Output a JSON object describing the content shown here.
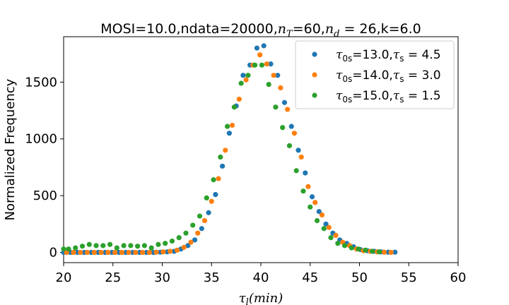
{
  "chart_data": {
    "type": "scatter",
    "title": {
      "prefix": "MOSI=10.0,ndata=20000,",
      "nT_sym": "n",
      "nT_sub": "T",
      "nT_val": "=60,",
      "nd_sym": "n",
      "nd_sub": "d",
      "nd_val": " = 26,k=6.0"
    },
    "xlabel": {
      "sym": "τ",
      "sub": "l",
      "rest": "(min)"
    },
    "ylabel": "Normalized Frequency",
    "xlim": [
      20,
      60
    ],
    "ylim": [
      -90,
      1900
    ],
    "xticks": [
      20,
      25,
      30,
      35,
      40,
      45,
      50,
      55,
      60
    ],
    "yticks": [
      0,
      500,
      1000,
      1500
    ],
    "grid": false,
    "legend_position": "top-right",
    "series": [
      {
        "name": "τ0s=13.0,τs = 4.5",
        "legend": {
          "a_sym": "τ",
          "a_sub": "0s",
          "a_val": "=13.0,",
          "b_sym": "τ",
          "b_sub": "s",
          "b_val": " = 4.5"
        },
        "color": "#1f77b4",
        "x": [
          20,
          20.7,
          21.4,
          22.1,
          22.8,
          23.5,
          24.2,
          24.9,
          25.6,
          26.3,
          27.0,
          27.7,
          28.4,
          29.1,
          29.8,
          30.5,
          31.2,
          31.9,
          32.6,
          33.3,
          34.0,
          34.7,
          35.4,
          36.1,
          36.8,
          37.5,
          38.2,
          38.9,
          39.6,
          40.3,
          41.0,
          41.7,
          42.4,
          43.1,
          43.8,
          44.5,
          45.2,
          45.9,
          46.6,
          47.3,
          48.0,
          48.7,
          49.4,
          50.1,
          50.8,
          51.5,
          52.2,
          52.9,
          53.6
        ],
        "y": [
          0,
          0,
          0,
          0,
          0,
          0,
          0,
          0,
          0,
          0,
          0,
          0,
          0,
          0,
          2,
          5,
          10,
          30,
          60,
          110,
          210,
          350,
          510,
          760,
          1050,
          1290,
          1560,
          1650,
          1800,
          1820,
          1660,
          1560,
          1320,
          1110,
          900,
          700,
          490,
          360,
          250,
          170,
          110,
          80,
          50,
          25,
          15,
          10,
          5,
          2,
          2
        ]
      },
      {
        "name": "τ0s=14.0,τs = 3.0",
        "legend": {
          "a_sym": "τ",
          "a_sub": "0s",
          "a_val": "=14.0,",
          "b_sym": "τ",
          "b_sub": "s",
          "b_val": " = 3.0"
        },
        "color": "#ff7f0e",
        "x": [
          20.3,
          21.0,
          21.7,
          22.4,
          23.1,
          23.8,
          24.5,
          25.2,
          25.9,
          26.6,
          27.3,
          28.0,
          28.7,
          29.4,
          30.1,
          30.8,
          31.5,
          32.2,
          32.9,
          33.6,
          34.3,
          35.0,
          35.7,
          36.4,
          37.1,
          37.8,
          38.5,
          39.2,
          39.9,
          40.6,
          41.3,
          42.0,
          42.7,
          43.4,
          44.1,
          44.8,
          45.5,
          46.2,
          46.9,
          47.6,
          48.3,
          49.0,
          49.7,
          50.4,
          51.1,
          51.8,
          52.5,
          53.2
        ],
        "y": [
          0,
          0,
          0,
          0,
          0,
          0,
          0,
          0,
          0,
          0,
          0,
          0,
          0,
          2,
          5,
          10,
          20,
          45,
          90,
          170,
          280,
          450,
          650,
          900,
          1120,
          1350,
          1520,
          1650,
          1740,
          1660,
          1560,
          1450,
          1260,
          1050,
          840,
          580,
          440,
          330,
          220,
          150,
          90,
          60,
          30,
          15,
          10,
          5,
          2,
          0
        ]
      },
      {
        "name": "τ0s=15.0,τs = 1.5",
        "legend": {
          "a_sym": "τ",
          "a_sub": "0s",
          "a_val": "=15.0,",
          "b_sym": "τ",
          "b_sub": "s",
          "b_val": " = 1.5"
        },
        "color": "#2ca02c",
        "x": [
          20.0,
          20.5,
          21.2,
          21.9,
          22.6,
          23.3,
          24.0,
          24.7,
          25.4,
          26.1,
          26.8,
          27.5,
          28.2,
          28.9,
          29.6,
          30.3,
          31.0,
          31.7,
          32.4,
          33.1,
          33.8,
          34.5,
          35.2,
          35.9,
          36.6,
          37.3,
          38.0,
          38.7,
          39.4,
          40.1,
          40.8,
          41.5,
          42.2,
          42.9,
          43.6,
          44.3,
          45.0,
          45.7,
          46.4,
          47.1,
          47.8,
          48.5,
          49.2,
          49.9,
          50.6,
          51.3,
          52.0
        ],
        "y": [
          30,
          30,
          40,
          55,
          70,
          60,
          60,
          70,
          40,
          60,
          60,
          55,
          60,
          40,
          70,
          80,
          100,
          130,
          170,
          240,
          320,
          480,
          640,
          840,
          1110,
          1280,
          1490,
          1560,
          1650,
          1650,
          1480,
          1280,
          1100,
          940,
          720,
          540,
          400,
          280,
          210,
          130,
          80,
          60,
          40,
          30,
          20,
          10,
          5
        ]
      }
    ]
  }
}
